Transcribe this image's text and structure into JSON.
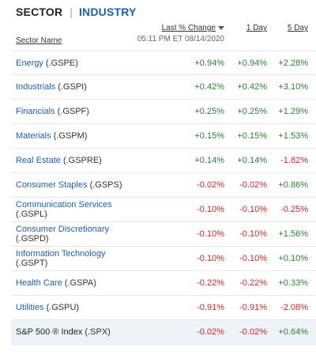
{
  "tabs": {
    "sector": "SECTOR",
    "separator": "|",
    "industry": "INDUSTRY"
  },
  "header": {
    "name_col": "Sector Name",
    "last_change_col": "Last % Change",
    "timestamp": "05:11 PM ET 08/14/2020",
    "one_day_col": "1 Day",
    "five_day_col": "5 Day"
  },
  "colors": {
    "positive": "#2e7d32",
    "negative": "#c62828",
    "link": "#1f5fa8"
  },
  "rows": [
    {
      "name": "Energy",
      "ticker": "(.GSPE)",
      "last": "+0.94%",
      "d1": "+0.94%",
      "d5": "+2.28%"
    },
    {
      "name": "Industrials",
      "ticker": "(.GSPI)",
      "last": "+0.42%",
      "d1": "+0.42%",
      "d5": "+3.10%"
    },
    {
      "name": "Financials",
      "ticker": "(.GSPF)",
      "last": "+0.25%",
      "d1": "+0.25%",
      "d5": "+1.29%"
    },
    {
      "name": "Materials",
      "ticker": "(.GSPM)",
      "last": "+0.15%",
      "d1": "+0.15%",
      "d5": "+1.53%"
    },
    {
      "name": "Real Estate",
      "ticker": "(.GSPRE)",
      "last": "+0.14%",
      "d1": "+0.14%",
      "d5": "-1.82%"
    },
    {
      "name": "Consumer Staples",
      "ticker": "(.GSPS)",
      "last": "-0.02%",
      "d1": "-0.02%",
      "d5": "+0.86%"
    },
    {
      "name": "Communication Services",
      "ticker": "(.GSPL)",
      "last": "-0.10%",
      "d1": "-0.10%",
      "d5": "-0.25%"
    },
    {
      "name": "Consumer Discretionary",
      "ticker": "(.GSPD)",
      "last": "-0.10%",
      "d1": "-0.10%",
      "d5": "+1.56%"
    },
    {
      "name": "Information Technology",
      "ticker": "(.GSPT)",
      "last": "-0.10%",
      "d1": "-0.10%",
      "d5": "+0.10%"
    },
    {
      "name": "Health Care",
      "ticker": "(.GSPA)",
      "last": "-0.22%",
      "d1": "-0.22%",
      "d5": "+0.33%"
    },
    {
      "name": "Utilities",
      "ticker": "(.GSPU)",
      "last": "-0.91%",
      "d1": "-0.91%",
      "d5": "-2.08%"
    }
  ],
  "total": {
    "name": "S&P 500 ® Index",
    "ticker": "(.SPX)",
    "last": "-0.02%",
    "d1": "-0.02%",
    "d5": "+0.64%"
  }
}
